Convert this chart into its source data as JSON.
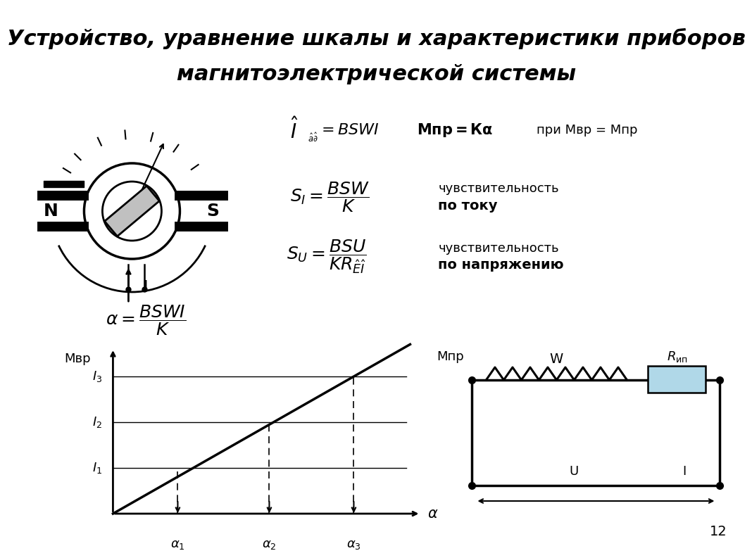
{
  "title_line1": "Устройство, уравнение шкалы и характеристики приборов",
  "title_line2": "магнитоэлектрической системы",
  "page_number": "12",
  "bg_color": "#ffffff",
  "text_color": "#000000",
  "graph_i_labels": [
    "$I_1$",
    "$I_2$",
    "$I_3$"
  ],
  "graph_alpha_labels": [
    "$\\alpha_1$",
    "$\\alpha_2$",
    "$\\alpha_3$"
  ],
  "circuit_labels": {
    "W": "W",
    "Rip": "$R_{\\text{ип}}$",
    "U": "U",
    "I": "I",
    "Mpr": "Мпр"
  }
}
